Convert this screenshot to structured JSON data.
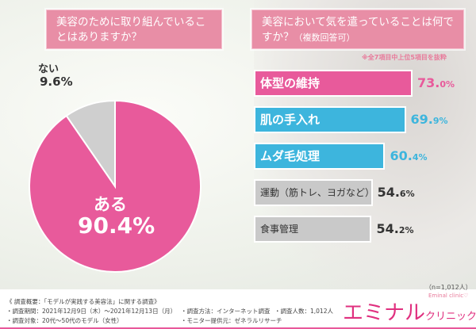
{
  "left": {
    "question": "美容のために取り組んでいることはありますか？"
  },
  "right": {
    "question_main": "美容において気を遣っていることは何ですか？",
    "question_note": "（複数回答可）",
    "note": "※全7項目中上位5項目を抜粋"
  },
  "chart_data": [
    {
      "type": "pie",
      "categories": [
        "ある",
        "ない"
      ],
      "values": [
        90.4,
        9.6
      ],
      "labels": [
        "90.4%",
        "9.6%"
      ],
      "colors": [
        "#e85a9b",
        "#cfcfcf"
      ]
    },
    {
      "type": "bar",
      "orientation": "horizontal",
      "categories": [
        "体型の維持",
        "肌の手入れ",
        "ムダ毛処理",
        "運動（筋トレ、ヨガなど）",
        "食事管理"
      ],
      "values": [
        73.0,
        69.9,
        60.4,
        54.6,
        54.2
      ],
      "labels": [
        [
          "73.",
          "0%"
        ],
        [
          "69.",
          "9%"
        ],
        [
          "60.",
          "4%"
        ],
        [
          "54.",
          "6%"
        ],
        [
          "54.",
          "2%"
        ]
      ],
      "colors": [
        "#e85a9b",
        "#3db5dd",
        "#3db5dd",
        "#c9c9c9",
        "#c9c9c9"
      ],
      "value_colors": [
        "#e85a9b",
        "#3db5dd",
        "#3db5dd",
        "#333333",
        "#333333"
      ]
    }
  ],
  "sample": "（n=1,012人）",
  "footer": {
    "title": "《 調査概要：「モデルが実践する美容法」に関する調査》",
    "period": "・調査期間：2021年12月9日（木）～2021年12月13日（月）",
    "method": "・調査方法：インターネット調査",
    "count": "・調査人数：1,012人",
    "target": "・調査対象：20代～50代のモデル（女性）",
    "provider": "・モニター提供元：ゼネラルリサーチ"
  },
  "logo": {
    "main": "エミナル",
    "sub": "クリニック",
    "en": "Eminal clinic♡"
  }
}
